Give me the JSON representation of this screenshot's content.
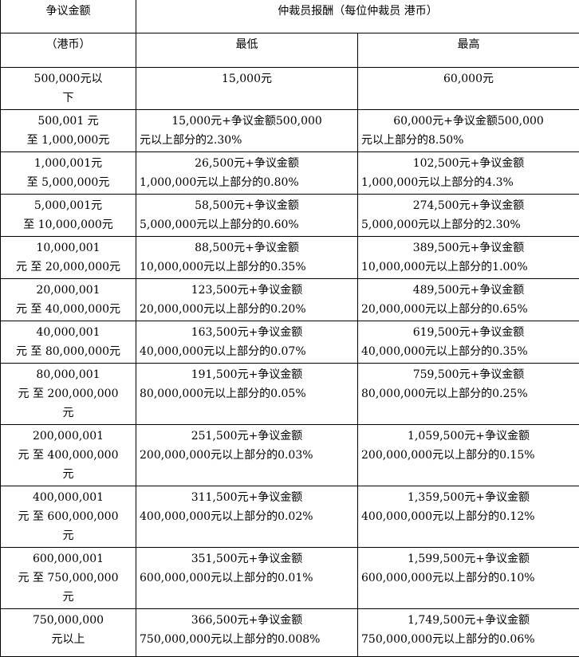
{
  "table": {
    "header": [
      [
        "争议金额",
        "仲裁员报酬（每位仲裁员 港币）"
      ],
      [
        "（港币）",
        "最低",
        "最高"
      ]
    ],
    "rows": [
      [
        [
          "500,000元以",
          "下"
        ],
        [
          "15,000元"
        ],
        [
          "60,000元"
        ]
      ],
      [
        [
          "500,001 元",
          "至 1,000,000元"
        ],
        [
          "15,000元+争议金额500,000",
          "元以上部分的2.30%"
        ],
        [
          "60,000元+争议金额500,000",
          "元以上部分的8.50%"
        ]
      ],
      [
        [
          "1,000,001元",
          "至 5,000,000元"
        ],
        [
          "26,500元+争议金额",
          "1,000,000元以上部分的0.80%"
        ],
        [
          "102,500元+争议金额",
          "1,000,000元以上部分的4.3%"
        ]
      ],
      [
        [
          "5,000,001元",
          "至 10,000,000元"
        ],
        [
          "58,500元+争议金额",
          "5,000,000元以上部分的0.60%"
        ],
        [
          "274,500元+争议金额",
          "5,000,000元以上部分的2.30%"
        ]
      ],
      [
        [
          "10,000,001",
          "元 至 20,000,000元"
        ],
        [
          "88,500元+争议金额",
          "10,000,000元以上部分的0.35%"
        ],
        [
          "389,500元+争议金额",
          "10,000,000元以上部分的1.00%"
        ]
      ],
      [
        [
          "20,000,001",
          "元 至 40,000,000元"
        ],
        [
          "123,500元+争议金额",
          "20,000,000元以上部分的0.20%"
        ],
        [
          "489,500元+争议金额",
          "20,000,000元以上部分的0.65%"
        ]
      ],
      [
        [
          "40,000,001",
          "元 至 80,000,000元"
        ],
        [
          "163,500元+争议金额",
          "40,000,000元以上部分的0.07%"
        ],
        [
          "619,500元+争议金额",
          "40,000,000元以上部分的0.35%"
        ]
      ],
      [
        [
          "80,000,001",
          "元 至 200,000,000",
          "元"
        ],
        [
          "191,500元+争议金额",
          "80,000,000元以上部分的0.05%"
        ],
        [
          "759,500元+争议金额",
          "80,000,000元以上部分的0.25%"
        ]
      ],
      [
        [
          "200,000,001",
          "元 至 400,000,000",
          "元"
        ],
        [
          "251,500元+争议金额",
          "200,000,000元以上部分的0.03%"
        ],
        [
          "1,059,500元+争议金额",
          "200,000,000元以上部分的0.15%"
        ]
      ],
      [
        [
          "400,000,001",
          "元 至 600,000,000",
          "元"
        ],
        [
          "311,500元+争议金额",
          "400,000,000元以上部分的0.02%"
        ],
        [
          "1,359,500元+争议金额",
          "400,000,000元以上部分的0.12%"
        ]
      ],
      [
        [
          "600,000,001",
          "元 至 750,000,000",
          "元"
        ],
        [
          "351,500元+争议金额",
          "600,000,000元以上部分的0.01%"
        ],
        [
          "1,599,500元+争议金额",
          "600,000,000元以上部分的0.10%"
        ]
      ],
      [
        [
          "750,000,000",
          "元以上"
        ],
        [
          "366,500元+争议金额",
          "750,000,000元以上部分的0.008%"
        ],
        [
          "1,749,500元+争议金额",
          "750,000,000元以上部分的0.06%"
        ]
      ]
    ]
  }
}
